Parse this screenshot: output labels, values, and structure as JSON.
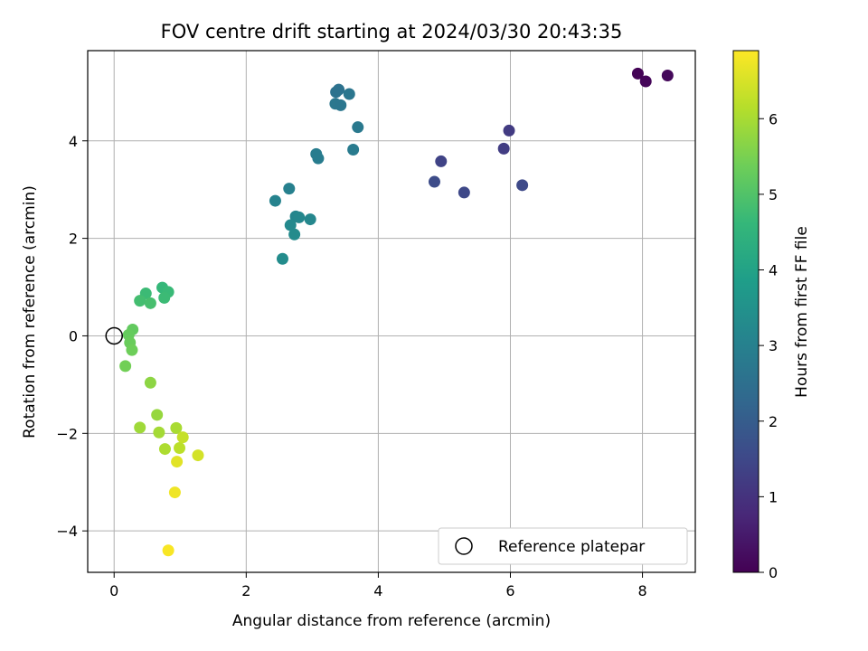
{
  "chart_data": {
    "type": "scatter",
    "title": "FOV centre drift starting at 2024/03/30 20:43:35",
    "xlabel": "Angular distance from reference (arcmin)",
    "ylabel": "Rotation from reference (arcmin)",
    "xlim": [
      -0.4,
      8.8
    ],
    "ylim": [
      -4.85,
      5.85
    ],
    "xticks": [
      0,
      2,
      4,
      6,
      8
    ],
    "yticks": [
      -4,
      -2,
      0,
      2,
      4
    ],
    "xtick_labels": [
      "0",
      "2",
      "4",
      "6",
      "8"
    ],
    "ytick_labels": [
      "−4",
      "−2",
      "0",
      "2",
      "4"
    ],
    "grid": true,
    "colormap": "viridis",
    "colorbar": {
      "label": "Hours from first FF file",
      "range": [
        0,
        6.9
      ],
      "ticks": [
        0,
        1,
        2,
        3,
        4,
        5,
        6
      ],
      "tick_labels": [
        "0",
        "1",
        "2",
        "3",
        "4",
        "5",
        "6"
      ]
    },
    "legend": {
      "placement": "lower-right",
      "entries": [
        "Reference platepar"
      ]
    },
    "reference_point": {
      "x": 0,
      "y": 0,
      "label": "Reference platepar"
    },
    "points": [
      {
        "x": 7.93,
        "y": 5.38,
        "hours": 0.05
      },
      {
        "x": 8.05,
        "y": 5.22,
        "hours": 0.1
      },
      {
        "x": 8.38,
        "y": 5.34,
        "hours": 0.15
      },
      {
        "x": 5.98,
        "y": 4.21,
        "hours": 1.2
      },
      {
        "x": 5.9,
        "y": 3.84,
        "hours": 1.25
      },
      {
        "x": 4.95,
        "y": 3.58,
        "hours": 1.4
      },
      {
        "x": 4.85,
        "y": 3.16,
        "hours": 1.6
      },
      {
        "x": 5.3,
        "y": 2.94,
        "hours": 1.5
      },
      {
        "x": 6.18,
        "y": 3.09,
        "hours": 1.55
      },
      {
        "x": 3.36,
        "y": 5.0,
        "hours": 2.6
      },
      {
        "x": 3.4,
        "y": 5.05,
        "hours": 2.6
      },
      {
        "x": 3.56,
        "y": 4.96,
        "hours": 2.7
      },
      {
        "x": 3.35,
        "y": 4.76,
        "hours": 2.75
      },
      {
        "x": 3.43,
        "y": 4.73,
        "hours": 2.7
      },
      {
        "x": 3.69,
        "y": 4.28,
        "hours": 2.8
      },
      {
        "x": 3.62,
        "y": 3.82,
        "hours": 2.85
      },
      {
        "x": 3.06,
        "y": 3.73,
        "hours": 2.9
      },
      {
        "x": 3.09,
        "y": 3.64,
        "hours": 2.9
      },
      {
        "x": 2.65,
        "y": 3.02,
        "hours": 3.0
      },
      {
        "x": 2.44,
        "y": 2.77,
        "hours": 3.1
      },
      {
        "x": 2.75,
        "y": 2.45,
        "hours": 3.15
      },
      {
        "x": 2.8,
        "y": 2.43,
        "hours": 3.2
      },
      {
        "x": 2.97,
        "y": 2.39,
        "hours": 3.2
      },
      {
        "x": 2.67,
        "y": 2.27,
        "hours": 3.25
      },
      {
        "x": 2.73,
        "y": 2.08,
        "hours": 3.3
      },
      {
        "x": 2.55,
        "y": 1.58,
        "hours": 3.35
      },
      {
        "x": 0.73,
        "y": 0.99,
        "hours": 4.6
      },
      {
        "x": 0.48,
        "y": 0.87,
        "hours": 4.7
      },
      {
        "x": 0.82,
        "y": 0.9,
        "hours": 4.65
      },
      {
        "x": 0.76,
        "y": 0.78,
        "hours": 4.7
      },
      {
        "x": 0.39,
        "y": 0.72,
        "hours": 4.8
      },
      {
        "x": 0.55,
        "y": 0.67,
        "hours": 4.85
      },
      {
        "x": 0.28,
        "y": 0.13,
        "hours": 5.2
      },
      {
        "x": 0.22,
        "y": 0.02,
        "hours": 5.25
      },
      {
        "x": 0.24,
        "y": -0.14,
        "hours": 5.3
      },
      {
        "x": 0.27,
        "y": -0.29,
        "hours": 5.35
      },
      {
        "x": 0.17,
        "y": -0.62,
        "hours": 5.4
      },
      {
        "x": 0.55,
        "y": -0.96,
        "hours": 5.7
      },
      {
        "x": 0.65,
        "y": -1.62,
        "hours": 5.8
      },
      {
        "x": 0.39,
        "y": -1.88,
        "hours": 5.9
      },
      {
        "x": 0.68,
        "y": -1.98,
        "hours": 5.95
      },
      {
        "x": 0.94,
        "y": -1.89,
        "hours": 6.0
      },
      {
        "x": 0.77,
        "y": -2.32,
        "hours": 6.05
      },
      {
        "x": 0.99,
        "y": -2.3,
        "hours": 6.2
      },
      {
        "x": 1.04,
        "y": -2.08,
        "hours": 6.3
      },
      {
        "x": 1.27,
        "y": -2.45,
        "hours": 6.45
      },
      {
        "x": 0.95,
        "y": -2.58,
        "hours": 6.6
      },
      {
        "x": 0.92,
        "y": -3.21,
        "hours": 6.75
      },
      {
        "x": 0.82,
        "y": -4.4,
        "hours": 6.85
      }
    ]
  }
}
